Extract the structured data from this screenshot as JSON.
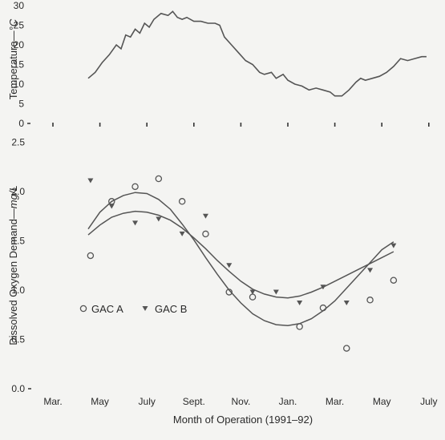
{
  "chart_data": [
    {
      "type": "line",
      "ylabel_main": "Temperature",
      "ylabel_unit": "°C",
      "ylim": [
        0,
        30
      ],
      "yticks": [
        "0",
        "5",
        "10",
        "15",
        "20",
        "25",
        "30"
      ],
      "series": [
        {
          "values": [
            [
              4.5,
              11.5
            ],
            [
              4.8,
              13
            ],
            [
              5.1,
              15.5
            ],
            [
              5.4,
              17.5
            ],
            [
              5.7,
              20
            ],
            [
              5.9,
              19
            ],
            [
              6.1,
              22.5
            ],
            [
              6.3,
              22
            ],
            [
              6.5,
              24
            ],
            [
              6.7,
              23
            ],
            [
              6.9,
              25.5
            ],
            [
              7.1,
              24.5
            ],
            [
              7.3,
              26.5
            ],
            [
              7.6,
              28
            ],
            [
              7.9,
              27.5
            ],
            [
              8.1,
              28.5
            ],
            [
              8.3,
              27
            ],
            [
              8.5,
              26.5
            ],
            [
              8.7,
              27
            ],
            [
              9.0,
              26
            ],
            [
              9.3,
              26
            ],
            [
              9.6,
              25.5
            ],
            [
              9.9,
              25.5
            ],
            [
              10.1,
              25
            ],
            [
              10.3,
              22
            ],
            [
              10.6,
              20
            ],
            [
              10.9,
              18
            ],
            [
              11.2,
              16
            ],
            [
              11.5,
              15
            ],
            [
              11.8,
              13
            ],
            [
              12.0,
              12.5
            ],
            [
              12.3,
              13
            ],
            [
              12.5,
              11.5
            ],
            [
              12.8,
              12.5
            ],
            [
              13.0,
              11
            ],
            [
              13.3,
              10
            ],
            [
              13.6,
              9.5
            ],
            [
              13.9,
              8.5
            ],
            [
              14.2,
              9
            ],
            [
              14.5,
              8.5
            ],
            [
              14.8,
              8
            ],
            [
              15.0,
              7
            ],
            [
              15.3,
              7
            ],
            [
              15.6,
              8.5
            ],
            [
              15.9,
              10.5
            ],
            [
              16.1,
              11.5
            ],
            [
              16.3,
              11
            ],
            [
              16.6,
              11.5
            ],
            [
              16.9,
              12
            ],
            [
              17.2,
              13
            ],
            [
              17.5,
              14.5
            ],
            [
              17.8,
              16.5
            ],
            [
              18.1,
              16
            ],
            [
              18.4,
              16.5
            ],
            [
              18.7,
              17
            ],
            [
              18.9,
              17
            ]
          ]
        }
      ]
    },
    {
      "type": "scatter",
      "ylabel_main": "Dissolved Oxygen Demand",
      "ylabel_unit": "mg/L",
      "xlabel": "Month of Operation (1991–92)",
      "ylim": [
        0,
        2.5
      ],
      "yticks": [
        "0.0",
        "0.5",
        "1.0",
        "1.5",
        "2.0",
        "2.5"
      ],
      "categories": [
        "Mar.",
        "May",
        "July",
        "Sept.",
        "Nov.",
        "Jan.",
        "Mar.",
        "May",
        "July"
      ],
      "legend_position": "center-left",
      "series": [
        {
          "name": "GAC A",
          "marker": "circle",
          "points": [
            [
              4.6,
              1.35
            ],
            [
              5.5,
              1.9
            ],
            [
              6.5,
              2.05
            ],
            [
              7.5,
              2.13
            ],
            [
              8.5,
              1.9
            ],
            [
              9.5,
              1.57
            ],
            [
              10.5,
              0.98
            ],
            [
              11.5,
              0.93
            ],
            [
              13.5,
              0.63
            ],
            [
              14.5,
              0.82
            ],
            [
              15.5,
              0.41
            ],
            [
              16.5,
              0.9
            ],
            [
              17.5,
              1.1
            ]
          ],
          "fit": [
            [
              4.5,
              1.62
            ],
            [
              5.0,
              1.79
            ],
            [
              5.5,
              1.9
            ],
            [
              6.0,
              1.96
            ],
            [
              6.5,
              1.99
            ],
            [
              7.0,
              1.98
            ],
            [
              7.5,
              1.92
            ],
            [
              8.0,
              1.82
            ],
            [
              8.5,
              1.67
            ],
            [
              9.0,
              1.51
            ],
            [
              9.5,
              1.33
            ],
            [
              10.0,
              1.16
            ],
            [
              10.5,
              1.0
            ],
            [
              11.0,
              0.87
            ],
            [
              11.5,
              0.76
            ],
            [
              12.0,
              0.69
            ],
            [
              12.5,
              0.65
            ],
            [
              13.0,
              0.64
            ],
            [
              13.5,
              0.66
            ],
            [
              14.0,
              0.71
            ],
            [
              14.5,
              0.79
            ],
            [
              15.0,
              0.89
            ],
            [
              15.5,
              1.02
            ],
            [
              16.0,
              1.15
            ],
            [
              16.5,
              1.28
            ],
            [
              17.0,
              1.41
            ],
            [
              17.5,
              1.49
            ]
          ]
        },
        {
          "name": "GAC B",
          "marker": "triangle-down",
          "points": [
            [
              4.6,
              2.11
            ],
            [
              5.5,
              1.85
            ],
            [
              6.5,
              1.68
            ],
            [
              7.5,
              1.72
            ],
            [
              8.5,
              1.57
            ],
            [
              9.5,
              1.75
            ],
            [
              10.5,
              1.25
            ],
            [
              11.5,
              0.98
            ],
            [
              12.5,
              0.98
            ],
            [
              13.5,
              0.87
            ],
            [
              14.5,
              1.03
            ],
            [
              15.5,
              0.87
            ],
            [
              16.5,
              1.2
            ],
            [
              17.5,
              1.45
            ]
          ],
          "fit": [
            [
              4.5,
              1.56
            ],
            [
              5.0,
              1.66
            ],
            [
              5.5,
              1.74
            ],
            [
              6.0,
              1.78
            ],
            [
              6.5,
              1.8
            ],
            [
              7.0,
              1.79
            ],
            [
              7.5,
              1.76
            ],
            [
              8.0,
              1.71
            ],
            [
              8.5,
              1.63
            ],
            [
              9.0,
              1.53
            ],
            [
              9.5,
              1.42
            ],
            [
              10.0,
              1.3
            ],
            [
              10.5,
              1.19
            ],
            [
              11.0,
              1.09
            ],
            [
              11.5,
              1.01
            ],
            [
              12.0,
              0.96
            ],
            [
              12.5,
              0.93
            ],
            [
              13.0,
              0.92
            ],
            [
              13.5,
              0.94
            ],
            [
              14.0,
              0.98
            ],
            [
              14.5,
              1.03
            ],
            [
              15.0,
              1.09
            ],
            [
              15.5,
              1.15
            ],
            [
              16.0,
              1.21
            ],
            [
              16.5,
              1.27
            ],
            [
              17.0,
              1.33
            ],
            [
              17.5,
              1.39
            ]
          ]
        }
      ]
    }
  ]
}
